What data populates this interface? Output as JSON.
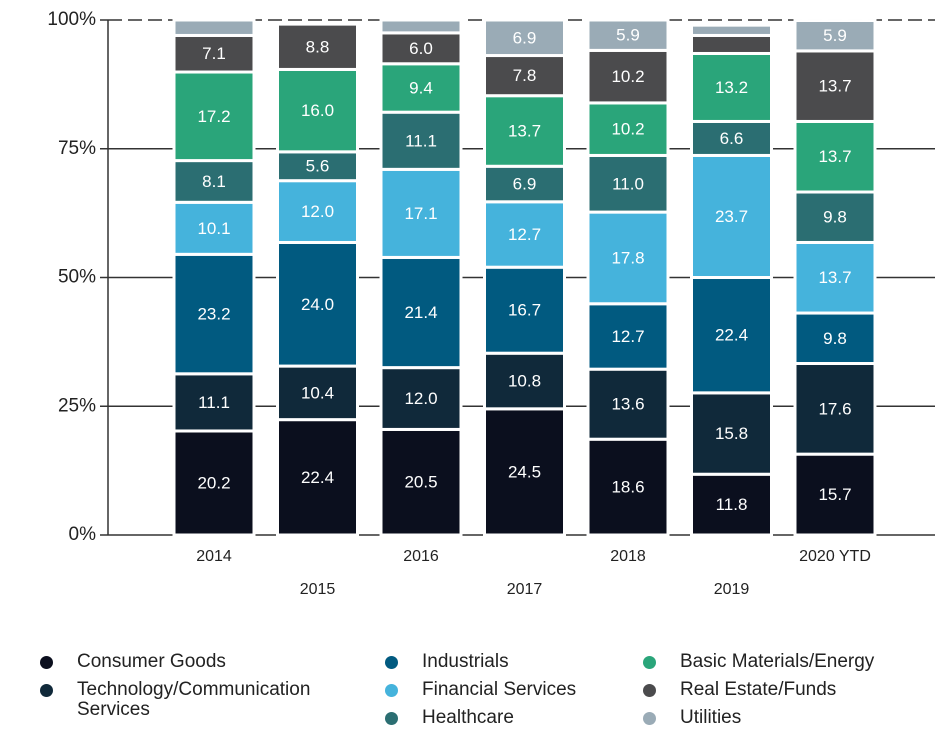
{
  "chart_data": {
    "type": "stacked_bar",
    "categories": [
      "2014",
      "2015",
      "2016",
      "2017",
      "2018",
      "2019",
      "2020 YTD"
    ],
    "ylim": [
      0,
      100
    ],
    "yticks": [
      {
        "value": 0,
        "label": "0%"
      },
      {
        "value": 25,
        "label": "25%"
      },
      {
        "value": 50,
        "label": "50%"
      },
      {
        "value": 75,
        "label": "75%"
      },
      {
        "value": 100,
        "label": "100%"
      }
    ],
    "grid": true,
    "legend": "bottom",
    "series": [
      {
        "name": "Consumer Goods",
        "color": "#0b0f1e",
        "values": [
          20.2,
          22.4,
          20.5,
          24.5,
          18.6,
          11.8,
          15.7
        ],
        "value_labels": [
          "20.2",
          "22.4",
          "20.5",
          "24.5",
          "18.6",
          "11.8",
          "15.7"
        ]
      },
      {
        "name": "Technology/Communication Services",
        "color": "#10293a",
        "values": [
          11.1,
          10.4,
          12.0,
          10.8,
          13.6,
          15.8,
          17.6
        ],
        "value_labels": [
          "11.1",
          "10.4",
          "12.0",
          "10.8",
          "13.6",
          "15.8",
          "17.6"
        ]
      },
      {
        "name": "Industrials",
        "color": "#015a80",
        "values": [
          23.2,
          24.0,
          21.4,
          16.7,
          12.7,
          22.4,
          9.8
        ],
        "value_labels": [
          "23.2",
          "24.0",
          "21.4",
          "16.7",
          "12.7",
          "22.4",
          "9.8"
        ]
      },
      {
        "name": "Financial Services",
        "color": "#45b3dc",
        "values": [
          10.1,
          12.0,
          17.1,
          12.7,
          17.8,
          23.7,
          13.7
        ],
        "value_labels": [
          "10.1",
          "12.0",
          "17.1",
          "12.7",
          "17.8",
          "23.7",
          "13.7"
        ]
      },
      {
        "name": "Healthcare",
        "color": "#2b6e72",
        "values": [
          8.1,
          5.6,
          11.1,
          6.9,
          11.0,
          6.6,
          9.8
        ],
        "value_labels": [
          "8.1",
          "5.6",
          "11.1",
          "6.9",
          "11.0",
          "6.6",
          "9.8"
        ]
      },
      {
        "name": "Basic Materials/Energy",
        "color": "#2aa57a",
        "values": [
          17.2,
          16.0,
          9.4,
          13.7,
          10.2,
          13.2,
          13.7
        ],
        "value_labels": [
          "17.2",
          "16.0",
          "9.4",
          "13.7",
          "10.2",
          "13.2",
          "13.7"
        ]
      },
      {
        "name": "Real Estate/Funds",
        "color": "#4b4b4d",
        "values": [
          7.1,
          8.8,
          6.0,
          7.8,
          10.2,
          3.5,
          13.7
        ],
        "value_labels": [
          "7.1",
          "8.8",
          "6.0",
          "7.8",
          "10.2",
          null,
          "13.7"
        ]
      },
      {
        "name": "Utilities",
        "color": "#9aabb6",
        "values": [
          3.0,
          null,
          2.5,
          6.9,
          5.9,
          2.0,
          5.9
        ],
        "value_labels": [
          null,
          null,
          null,
          "6.9",
          "5.9",
          null,
          "5.9"
        ]
      }
    ]
  }
}
